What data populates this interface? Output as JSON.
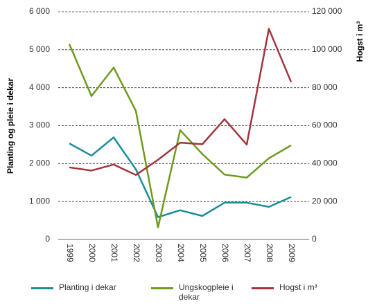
{
  "chart_data": {
    "type": "line",
    "y_label": "Planting og pleie i dekar",
    "y2_label": "Hogst i m³",
    "categories": [
      "1999",
      "2000",
      "2001",
      "2002",
      "2003",
      "2004",
      "2005",
      "2006",
      "2007",
      "2008",
      "2009"
    ],
    "series": [
      {
        "name": "Planting i dekar",
        "color": "#1a8c9c",
        "values": [
          2530,
          2210,
          2690,
          1850,
          590,
          770,
          620,
          970,
          970,
          860,
          1120
        ]
      },
      {
        "name": "Ungskogpleie i dekar",
        "color": "#6e9a1f",
        "values": [
          5150,
          3780,
          4530,
          3390,
          320,
          2880,
          2250,
          1710,
          1630,
          2140,
          2480
        ]
      },
      {
        "name": "Hogst i m³",
        "color": "#a3333d",
        "axis": "y2",
        "values": [
          38000,
          36300,
          39500,
          34000,
          42000,
          51000,
          50200,
          63400,
          50000,
          111000,
          83000
        ]
      }
    ],
    "ylim": [
      0,
      6000
    ],
    "yticks": [
      0,
      {
        "value": 1000,
        "label": "1 000"
      },
      {
        "value": 2000,
        "label": "2 000"
      },
      {
        "value": 3000,
        "label": "3 000"
      },
      {
        "value": 4000,
        "label": "4 000"
      },
      {
        "value": 5000,
        "label": "5 000"
      },
      {
        "value": 6000,
        "label": "6 000"
      }
    ],
    "y2lim": [
      0,
      120000
    ],
    "y2ticks": [
      0,
      {
        "value": 20000,
        "label": "20 000"
      },
      {
        "value": 40000,
        "label": "40 000"
      },
      {
        "value": 60000,
        "label": "60 000"
      },
      {
        "value": 80000,
        "label": "80 000"
      },
      {
        "value": 100000,
        "label": "100 000"
      },
      {
        "value": 120000,
        "label": "120 000"
      }
    ],
    "grid": true
  }
}
